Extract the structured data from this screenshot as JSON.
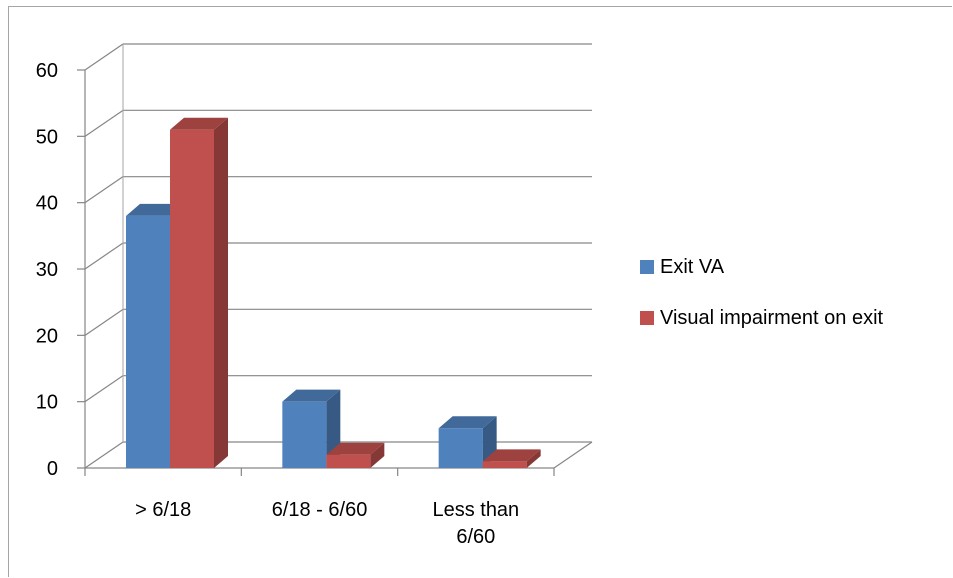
{
  "chart_data": {
    "type": "bar",
    "title": "",
    "xlabel": "",
    "ylabel": "",
    "categories": [
      "> 6/18",
      "6/18 - 6/60",
      "Less than 6/60"
    ],
    "series": [
      {
        "name": "Exit VA",
        "values": [
          38,
          10,
          6
        ],
        "color": "#4f81bd"
      },
      {
        "name": "Visual impairment on exit",
        "values": [
          51,
          2,
          1
        ],
        "color": "#c0504d"
      }
    ],
    "ylim": [
      0,
      60
    ],
    "yticks": [
      0,
      10,
      20,
      30,
      40,
      50,
      60
    ],
    "grid": true,
    "legend": "right",
    "three_d": true
  }
}
